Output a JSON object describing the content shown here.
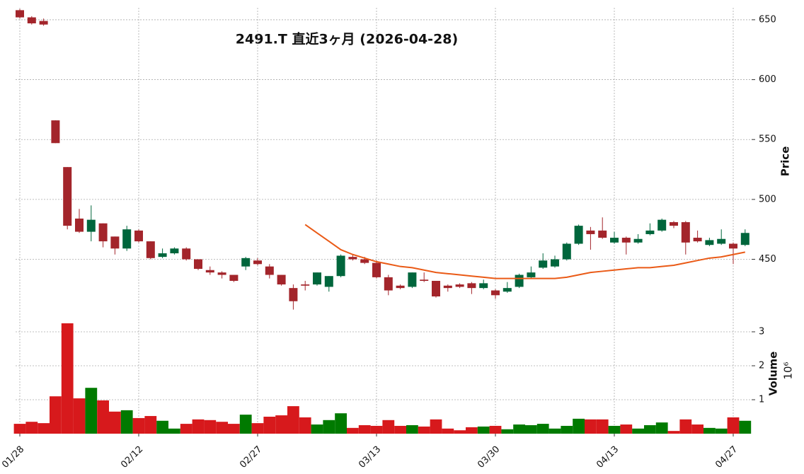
{
  "chart_data": {
    "type": "candlestick",
    "title": "2491.T  直近3ヶ月  (2026-04-28)",
    "x": [
      "01/28",
      null,
      null,
      null,
      null,
      null,
      null,
      null,
      null,
      null,
      "02/12",
      null,
      null,
      null,
      null,
      null,
      null,
      null,
      null,
      null,
      "02/27",
      null,
      null,
      null,
      null,
      null,
      null,
      null,
      null,
      null,
      "03/13",
      null,
      null,
      null,
      null,
      null,
      null,
      null,
      null,
      null,
      "03/30",
      null,
      null,
      null,
      null,
      null,
      null,
      null,
      null,
      null,
      "04/13",
      null,
      null,
      null,
      null,
      null,
      null,
      null,
      null,
      null,
      "04/27",
      null
    ],
    "open": [
      658,
      652,
      649,
      566,
      527,
      484,
      473,
      480,
      469,
      459,
      474,
      465,
      452,
      455,
      459,
      450,
      441,
      439,
      437,
      444,
      449,
      444,
      437,
      426,
      429,
      429,
      427,
      436,
      452,
      450,
      447,
      435,
      428,
      427,
      433,
      432,
      428,
      429,
      430,
      426,
      424,
      423,
      427,
      435,
      443,
      444,
      450,
      463,
      474,
      474,
      464,
      468,
      464,
      471,
      474,
      481,
      481,
      468,
      462,
      463,
      463,
      462
    ],
    "high": [
      659,
      653,
      651,
      566,
      527,
      492,
      495,
      480,
      469,
      478,
      475,
      465,
      459,
      460,
      460,
      450,
      444,
      440,
      437,
      452,
      451,
      446,
      437,
      429,
      432,
      439,
      436,
      454,
      454,
      452,
      449,
      437,
      429,
      439,
      439,
      432,
      429,
      430,
      431,
      433,
      425,
      431,
      438,
      444,
      455,
      453,
      464,
      479,
      477,
      485,
      473,
      469,
      471,
      480,
      484,
      482,
      482,
      474,
      468,
      475,
      464,
      475
    ],
    "low": [
      651,
      646,
      645,
      547,
      475,
      472,
      465,
      460,
      454,
      457,
      464,
      450,
      451,
      454,
      449,
      441,
      437,
      434,
      431,
      441,
      445,
      434,
      428,
      408,
      424,
      428,
      423,
      435,
      449,
      446,
      434,
      420,
      425,
      426,
      431,
      418,
      423,
      426,
      421,
      425,
      417,
      422,
      426,
      434,
      442,
      443,
      449,
      462,
      458,
      467,
      463,
      454,
      463,
      470,
      473,
      476,
      454,
      464,
      461,
      462,
      446,
      461
    ],
    "close": [
      652,
      647,
      646,
      547,
      478,
      473,
      483,
      465,
      459,
      475,
      465,
      451,
      455,
      459,
      450,
      442,
      439,
      437,
      432,
      451,
      446,
      437,
      429,
      415,
      428,
      439,
      436,
      453,
      450,
      447,
      435,
      424,
      426,
      439,
      432,
      419,
      426,
      427,
      426,
      430,
      420,
      426,
      437,
      439,
      449,
      450,
      463,
      478,
      471,
      468,
      468,
      464,
      467,
      474,
      483,
      478,
      464,
      465,
      466,
      467,
      459,
      472
    ],
    "up_color": "#00663c",
    "down_color": "#a3252b",
    "ylim": [
      406,
      660
    ],
    "yticks": [
      450,
      500,
      550,
      600,
      650
    ],
    "ylabel": "Price",
    "grid": true,
    "moving_average": {
      "color": "#ea5a16",
      "values": [
        null,
        null,
        null,
        null,
        null,
        null,
        null,
        null,
        null,
        null,
        null,
        null,
        null,
        null,
        null,
        null,
        null,
        null,
        null,
        null,
        null,
        null,
        null,
        null,
        479,
        472,
        465,
        458,
        454,
        451,
        448,
        446,
        444,
        443,
        441,
        439,
        438,
        437,
        436,
        435,
        434,
        434,
        434,
        434,
        434,
        434,
        435,
        437,
        439,
        440,
        441,
        442,
        443,
        443,
        444,
        445,
        447,
        449,
        451,
        452,
        454,
        456
      ]
    },
    "volume": {
      "values": [
        0.29,
        0.35,
        0.31,
        1.1,
        3.25,
        1.04,
        1.35,
        0.98,
        0.65,
        0.69,
        0.46,
        0.52,
        0.38,
        0.15,
        0.29,
        0.42,
        0.4,
        0.35,
        0.29,
        0.56,
        0.31,
        0.5,
        0.54,
        0.81,
        0.48,
        0.27,
        0.4,
        0.6,
        0.17,
        0.25,
        0.23,
        0.4,
        0.23,
        0.25,
        0.21,
        0.42,
        0.15,
        0.1,
        0.19,
        0.21,
        0.23,
        0.13,
        0.27,
        0.25,
        0.29,
        0.15,
        0.23,
        0.44,
        0.42,
        0.42,
        0.23,
        0.27,
        0.15,
        0.25,
        0.33,
        0.08,
        0.42,
        0.27,
        0.17,
        0.15,
        0.48,
        0.38
      ],
      "up_color": "#007a00",
      "down_color": "#d7191c",
      "ylim": [
        0,
        3.5
      ],
      "yticks": [
        1,
        2,
        3
      ],
      "ylabel": "Volume",
      "scale_label": "10⁶"
    }
  }
}
